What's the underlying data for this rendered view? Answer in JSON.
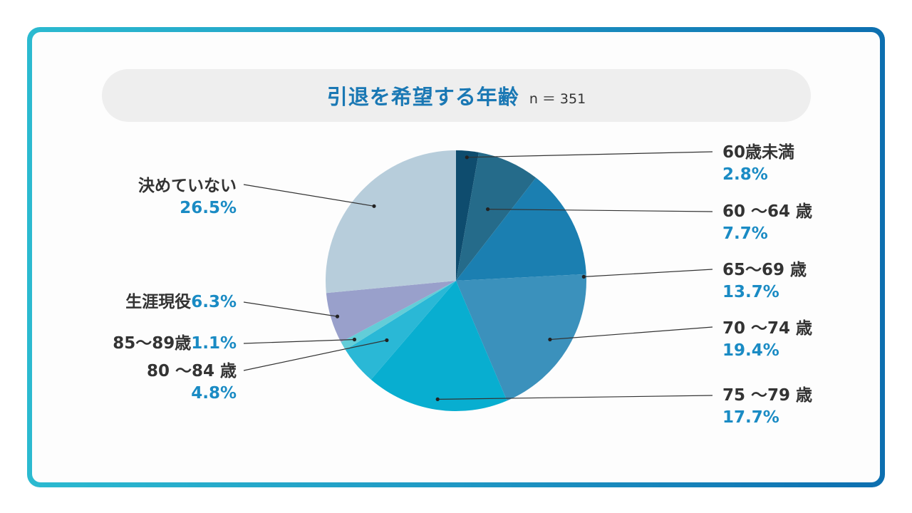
{
  "chart_data": {
    "type": "pie",
    "title": "引退を希望する年齢",
    "sample_size": "n ＝ 351",
    "start_angle_deg": 0,
    "direction": "clockwise",
    "slices": [
      {
        "label": "60歳未満",
        "value": 2.8,
        "pct_text": "2.8%",
        "color": "#0e4c6e"
      },
      {
        "label": "60 〜64 歳",
        "value": 7.7,
        "pct_text": "7.7%",
        "color": "#256b8a"
      },
      {
        "label": "65〜69 歳",
        "value": 13.7,
        "pct_text": "13.7%",
        "color": "#1b7fb1"
      },
      {
        "label": "70 〜74 歳",
        "value": 19.4,
        "pct_text": "19.4%",
        "color": "#3b91bc"
      },
      {
        "label": "75 〜79 歳",
        "value": 17.7,
        "pct_text": "17.7%",
        "color": "#08aed0"
      },
      {
        "label": "80 〜84 歳",
        "value": 4.8,
        "pct_text": "4.8%",
        "color": "#2ab8d6"
      },
      {
        "label": "85〜89歳",
        "value": 1.1,
        "pct_text": "1.1%",
        "color": "#63cdd8"
      },
      {
        "label": "生涯現役",
        "value": 6.3,
        "pct_text": "6.3%",
        "color": "#99a0cb"
      },
      {
        "label": "決めていない",
        "value": 26.5,
        "pct_text": "26.5%",
        "color": "#b7cddb"
      }
    ]
  }
}
